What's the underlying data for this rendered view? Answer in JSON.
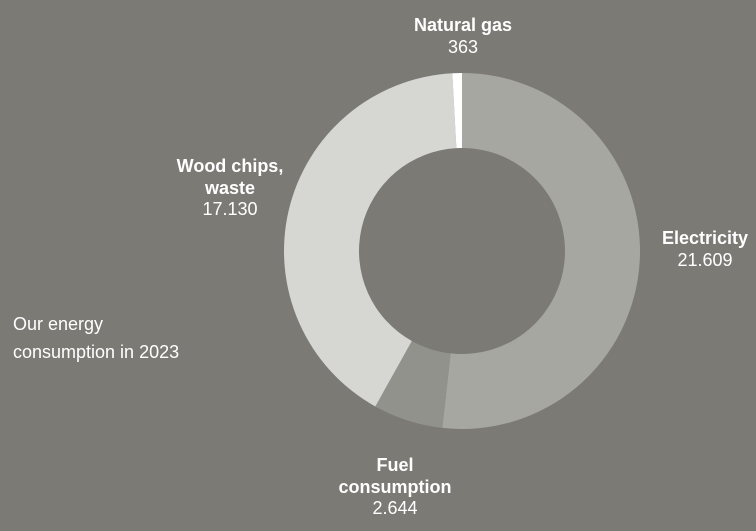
{
  "chart_data": {
    "type": "pie",
    "variant": "donut",
    "categories": [
      "Electricity",
      "Fuel consumption",
      "Wood chips, waste",
      "Natural gas"
    ],
    "values": [
      21609,
      2644,
      17130,
      363
    ],
    "value_labels": [
      "21.609",
      "2.644",
      "17.130",
      "363"
    ],
    "label_lines": [
      [
        "Electricity"
      ],
      [
        "Fuel",
        "consumption"
      ],
      [
        "Wood chips,",
        "waste"
      ],
      [
        "Natural gas"
      ]
    ],
    "colors": [
      "#a7a7a2",
      "#92928d",
      "#d6d6d3",
      "#ffffff"
    ],
    "legend": "none",
    "start": "12 o'clock, clockwise"
  },
  "caption": {
    "line1": "Our energy",
    "line2": "consumption in 2023"
  },
  "colors": {
    "background": "#7b7a75",
    "text": "#ffffff"
  }
}
